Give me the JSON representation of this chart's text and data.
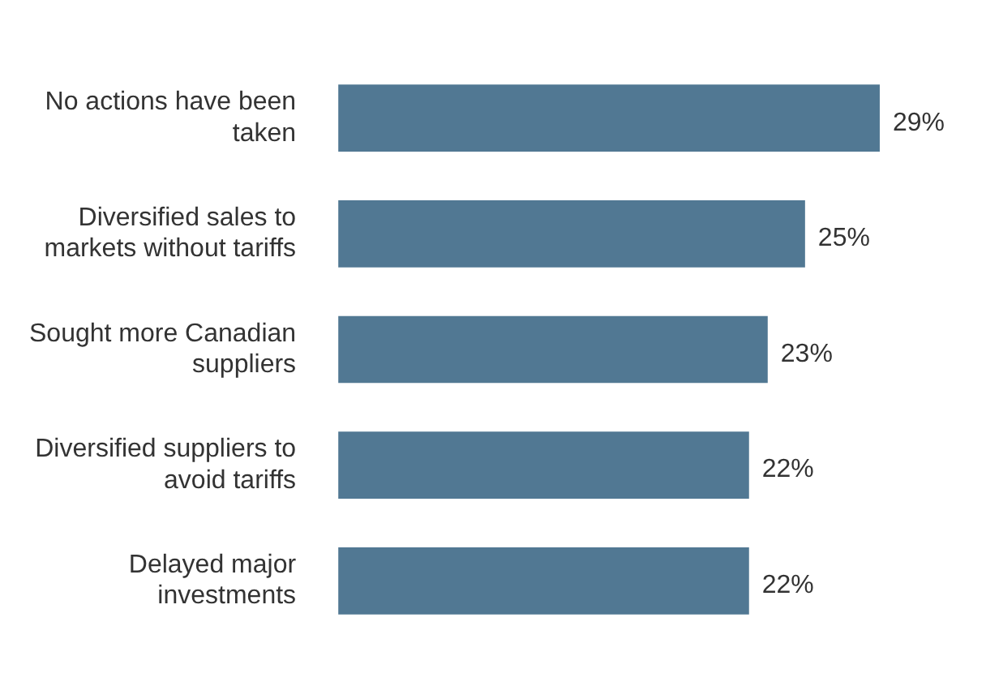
{
  "chart_data": {
    "type": "bar",
    "orientation": "horizontal",
    "categories": [
      "No actions have been taken",
      "Diversified sales to markets without tariffs",
      "Sought more Canadian suppliers",
      "Diversified suppliers to avoid tariffs",
      "Delayed major investments"
    ],
    "values": [
      29,
      25,
      23,
      22,
      22
    ],
    "value_labels": [
      "29%",
      "25%",
      "23%",
      "22%",
      "22%"
    ],
    "color": "#517893",
    "tick_labels": "y",
    "legend": false
  }
}
